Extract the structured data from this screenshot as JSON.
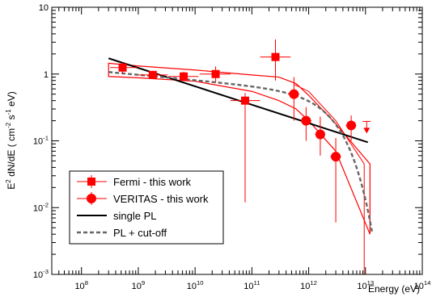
{
  "chart_data": {
    "type": "scatter",
    "xlabel": "Energy (eV)",
    "ylabel_parts": [
      "E",
      "2",
      " dN/dE  ( cm",
      "-2",
      " s",
      "-1",
      " eV)"
    ],
    "x_scale": "log",
    "y_scale": "log",
    "xlim": [
      30000000.0,
      100000000000000.0
    ],
    "ylim": [
      0.001,
      10
    ],
    "x_ticks": [
      {
        "value": 100000000.0,
        "base": "10",
        "exp": "8"
      },
      {
        "value": 1000000000.0,
        "base": "10",
        "exp": "9"
      },
      {
        "value": 10000000000.0,
        "base": "10",
        "exp": "10"
      },
      {
        "value": 100000000000.0,
        "base": "10",
        "exp": "11"
      },
      {
        "value": 1000000000000.0,
        "base": "10",
        "exp": "12"
      },
      {
        "value": 10000000000000.0,
        "base": "10",
        "exp": "13"
      },
      {
        "value": 100000000000000.0,
        "base": "10",
        "exp": "14"
      }
    ],
    "y_ticks": [
      {
        "value": 10,
        "label": "10"
      },
      {
        "value": 1,
        "label": "1"
      },
      {
        "value": 0.1,
        "base": "10",
        "exp": "-1"
      },
      {
        "value": 0.01,
        "base": "10",
        "exp": "-2"
      },
      {
        "value": 0.001,
        "base": "10",
        "exp": "-3"
      }
    ],
    "grid": false,
    "legend_position": "bottom-left",
    "legend": [
      {
        "key": "fermi",
        "label": "Fermi - this work"
      },
      {
        "key": "veritas",
        "label": "VERITAS - this work"
      },
      {
        "key": "pl",
        "label": "single PL"
      },
      {
        "key": "cutoff",
        "label": "PL + cut-off"
      }
    ],
    "colors": {
      "data": "#ff0000",
      "pl": "#000000",
      "cutoff": "#666666"
    },
    "fermi_points": [
      {
        "x": 530000000.0,
        "y": 1.25,
        "xlo": 320000000.0,
        "xhi": 950000000.0,
        "ylo": 1.0,
        "yhi": 1.5
      },
      {
        "x": 1800000000.0,
        "y": 0.97,
        "xlo": 1000000000.0,
        "xhi": 3300000000.0,
        "ylo": 0.84,
        "yhi": 1.12
      },
      {
        "x": 6300000000.0,
        "y": 0.92,
        "xlo": 3400000000.0,
        "xhi": 11500000000.0,
        "ylo": 0.78,
        "yhi": 1.08
      },
      {
        "x": 23000000000.0,
        "y": 1.0,
        "xlo": 12000000000.0,
        "xhi": 42000000000.0,
        "ylo": 0.75,
        "yhi": 1.3
      },
      {
        "x": 76000000000.0,
        "y": 0.4,
        "xlo": 42000000000.0,
        "xhi": 140000000000.0,
        "ylo": 0.012,
        "yhi": 0.52
      },
      {
        "x": 260000000000.0,
        "y": 1.8,
        "xlo": 140000000000.0,
        "xhi": 480000000000.0,
        "ylo": 0.8,
        "yhi": 3.3
      }
    ],
    "veritas_points": [
      {
        "x": 550000000000.0,
        "y": 0.5,
        "xlo": 430000000000.0,
        "xhi": 680000000000.0,
        "ylo": 0.2,
        "yhi": 0.9
      },
      {
        "x": 900000000000.0,
        "y": 0.2,
        "xlo": 730000000000.0,
        "xhi": 1120000000000.0,
        "ylo": 0.1,
        "yhi": 0.32
      },
      {
        "x": 1600000000000.0,
        "y": 0.125,
        "xlo": 1300000000000.0,
        "xhi": 1950000000000.0,
        "ylo": 0.06,
        "yhi": 0.23
      },
      {
        "x": 3000000000000.0,
        "y": 0.058,
        "xlo": 2400000000000.0,
        "xhi": 3700000000000.0,
        "ylo": 0.006,
        "yhi": 0.11
      },
      {
        "x": 5600000000000.0,
        "y": 0.17,
        "xlo": 4500000000000.0,
        "xhi": 6900000000000.0,
        "ylo": 0.1,
        "yhi": 0.24
      }
    ],
    "upper_limits": [
      {
        "x": 10500000000000.0,
        "y": 0.14
      }
    ],
    "single_pl": {
      "x": [
        300000000.0,
        11000000000000.0
      ],
      "y": [
        1.72,
        0.095
      ]
    },
    "pl_cutoff": {
      "amp_at_1e10": 0.81,
      "index": 2.08,
      "cutoff_ev": 2800000000000.0,
      "xmin": 300000000.0,
      "xmax": 13000000000000.0
    },
    "butterfly_pl": {
      "x": [
        300000000.0,
        1000000000.0,
        10000000000.0,
        100000000000.0,
        300000000000.0,
        600000000000.0,
        1000000000000.0,
        3000000000000.0,
        12000000000000.0
      ],
      "upper": [
        1.45,
        1.32,
        1.15,
        0.97,
        0.9,
        0.72,
        0.48,
        0.18,
        0.045
      ],
      "lower": [
        0.92,
        0.88,
        0.78,
        0.55,
        0.4,
        0.3,
        0.2,
        0.07,
        0.004
      ]
    }
  }
}
